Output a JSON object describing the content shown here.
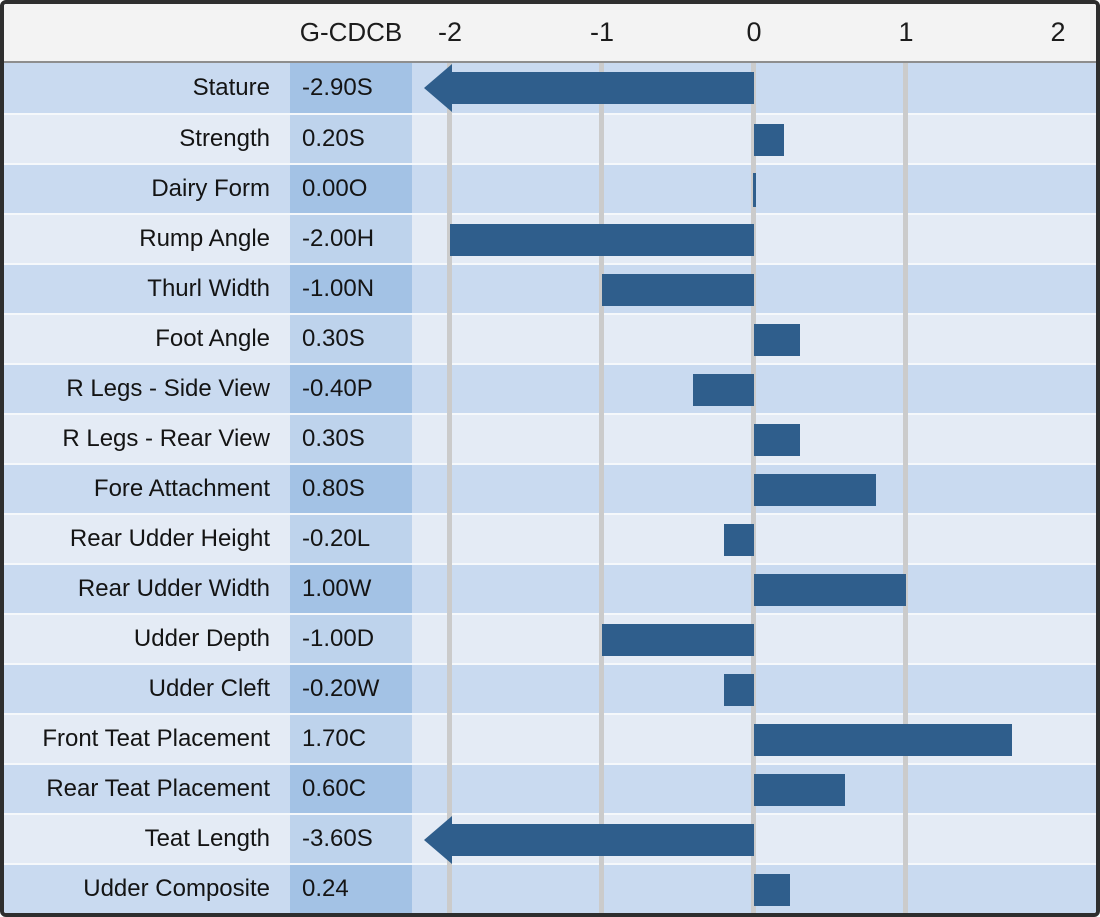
{
  "header": {
    "value_col_label": "G-CDCB",
    "axis_ticks": [
      "-2",
      "-1",
      "0",
      "1",
      "2"
    ]
  },
  "rows": [
    {
      "trait": "Stature",
      "value_label": "-2.90S",
      "value": -2.9
    },
    {
      "trait": "Strength",
      "value_label": "0.20S",
      "value": 0.2
    },
    {
      "trait": "Dairy Form",
      "value_label": "0.00O",
      "value": 0.0
    },
    {
      "trait": "Rump Angle",
      "value_label": "-2.00H",
      "value": -2.0
    },
    {
      "trait": "Thurl Width",
      "value_label": "-1.00N",
      "value": -1.0
    },
    {
      "trait": "Foot Angle",
      "value_label": "0.30S",
      "value": 0.3
    },
    {
      "trait": "R Legs - Side View",
      "value_label": "-0.40P",
      "value": -0.4
    },
    {
      "trait": "R Legs - Rear View",
      "value_label": "0.30S",
      "value": 0.3
    },
    {
      "trait": "Fore Attachment",
      "value_label": "0.80S",
      "value": 0.8
    },
    {
      "trait": "Rear Udder Height",
      "value_label": "-0.20L",
      "value": -0.2
    },
    {
      "trait": "Rear Udder Width",
      "value_label": "1.00W",
      "value": 1.0
    },
    {
      "trait": "Udder Depth",
      "value_label": "-1.00D",
      "value": -1.0
    },
    {
      "trait": "Udder Cleft",
      "value_label": "-0.20W",
      "value": -0.2
    },
    {
      "trait": "Front Teat Placement",
      "value_label": "1.70C",
      "value": 1.7
    },
    {
      "trait": "Rear Teat Placement",
      "value_label": "0.60C",
      "value": 0.6
    },
    {
      "trait": "Teat Length",
      "value_label": "-3.60S",
      "value": -3.6
    },
    {
      "trait": "Udder Composite",
      "value_label": "0.24",
      "value": 0.24
    }
  ],
  "colors": {
    "bar": "#2f5e8c",
    "row_dark": "#c9daf0",
    "row_light": "#e4ebf5",
    "value_cell_dark": "#a3c2e5",
    "value_cell_light": "#bed3ec",
    "header_bg": "#f3f3f3",
    "gridline": "#cbcbcb",
    "outer_border": "#2e2e2e"
  },
  "chart_data": {
    "type": "bar",
    "orientation": "horizontal",
    "title": "",
    "xlabel": "",
    "ylabel": "",
    "value_column_header": "G-CDCB",
    "categories": [
      "Stature",
      "Strength",
      "Dairy Form",
      "Rump Angle",
      "Thurl Width",
      "Foot Angle",
      "R Legs - Side View",
      "R Legs - Rear View",
      "Fore Attachment",
      "Rear Udder Height",
      "Rear Udder Width",
      "Udder Depth",
      "Udder Cleft",
      "Front Teat Placement",
      "Rear Teat Placement",
      "Teat Length",
      "Udder Composite"
    ],
    "values": [
      -2.9,
      0.2,
      0.0,
      -2.0,
      -1.0,
      0.3,
      -0.4,
      0.3,
      0.8,
      -0.2,
      1.0,
      -1.0,
      -0.2,
      1.7,
      0.6,
      -3.6,
      0.24
    ],
    "value_labels": [
      "-2.90S",
      "0.20S",
      "0.00O",
      "-2.00H",
      "-1.00N",
      "0.30S",
      "-0.40P",
      "0.30S",
      "0.80S",
      "-0.20L",
      "1.00W",
      "-1.00D",
      "-0.20W",
      "1.70C",
      "0.60C",
      "-3.60S",
      "0.24"
    ],
    "xlim": [
      -2.25,
      2.25
    ],
    "ticks": [
      -2,
      -1,
      0,
      1,
      2
    ],
    "grid": true,
    "legend": false,
    "overflow_arrow_threshold": -2.17
  }
}
